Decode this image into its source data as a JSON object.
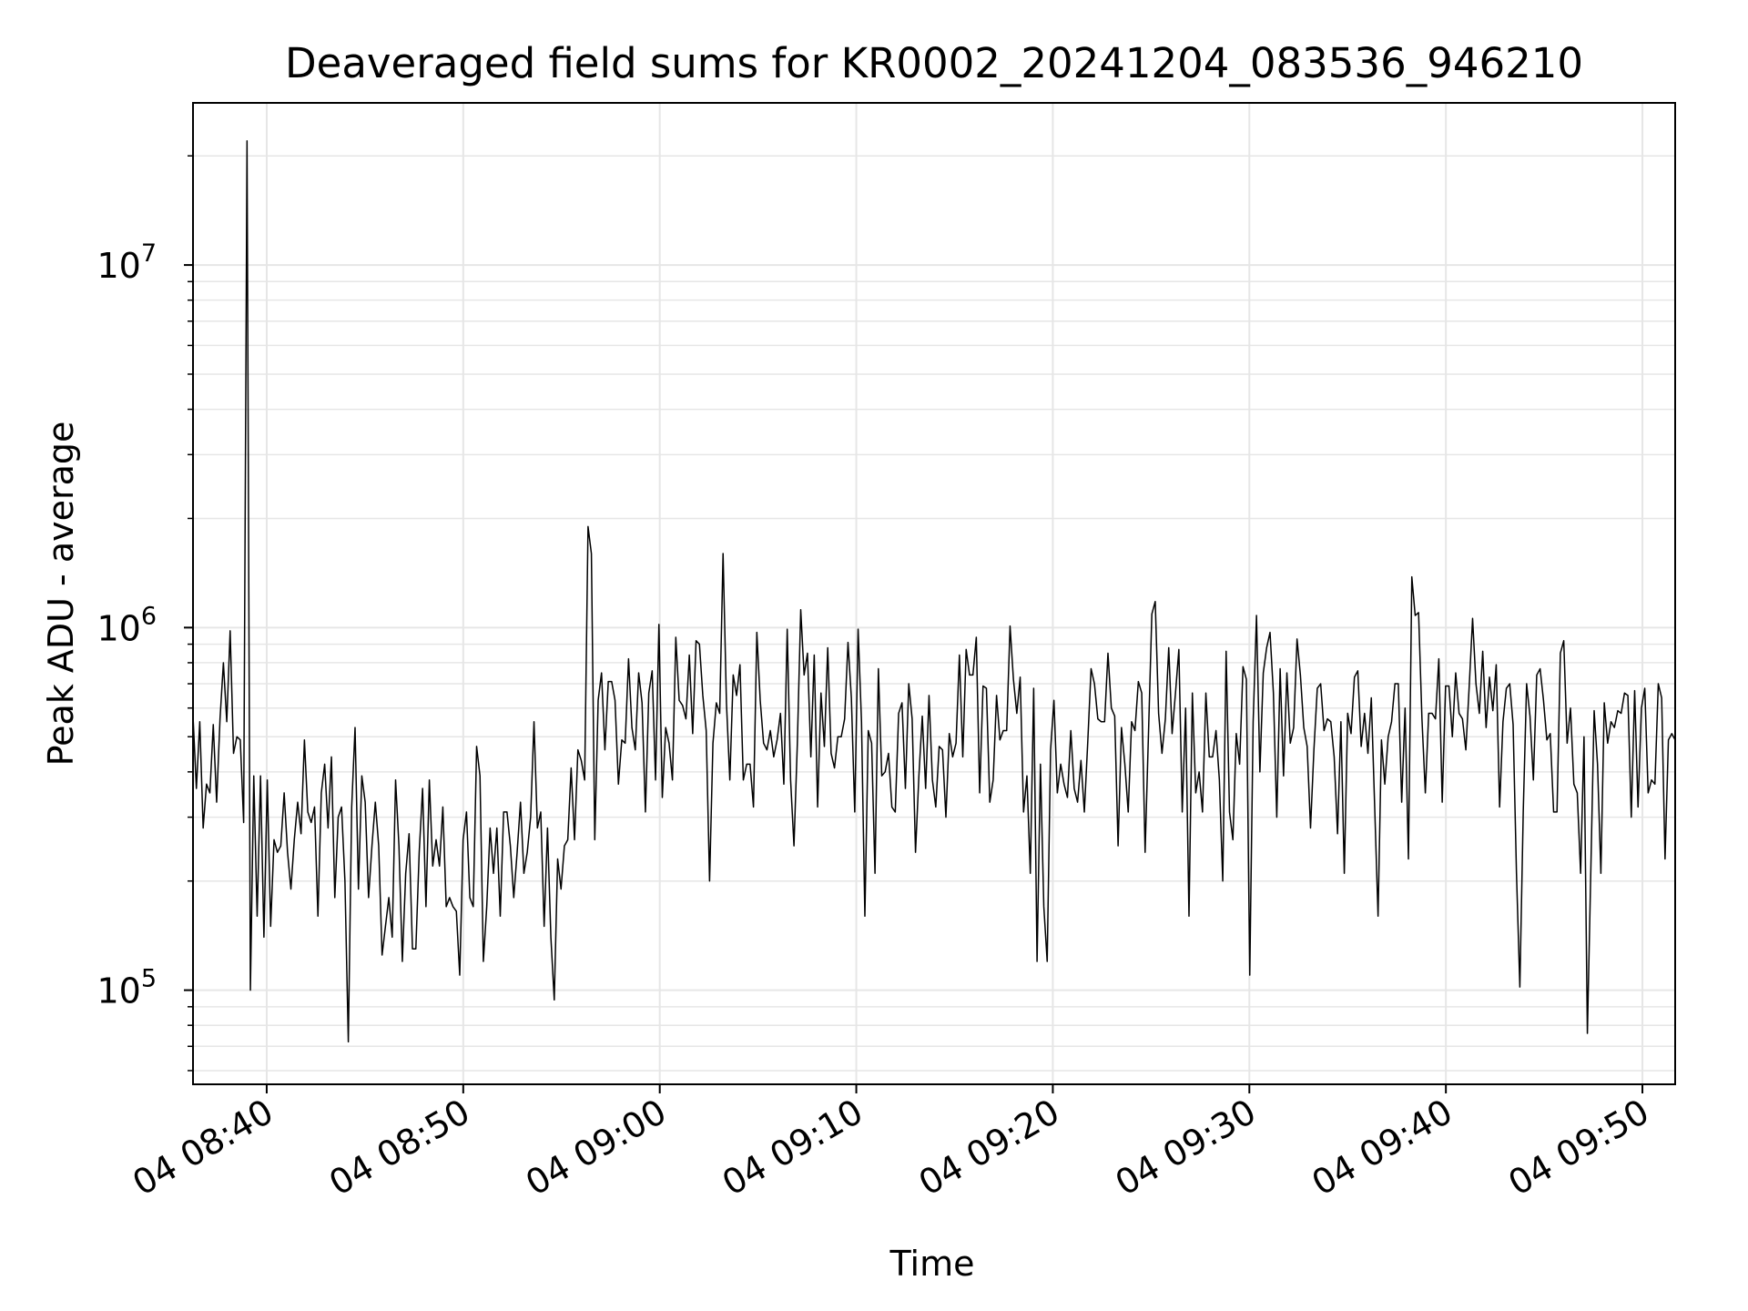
{
  "chart_data": {
    "type": "line",
    "title": "Deaveraged field sums for KR0002_20241204_083536_946210",
    "xlabel": "Time",
    "ylabel": "Peak ADU - average",
    "yscale": "log",
    "ylim": [
      55000,
      28000000
    ],
    "xlim": [
      "2024-12-04 08:36:15",
      "2024-12-04 09:51:40"
    ],
    "grid": true,
    "line_color": "#000000",
    "grid_color": "#e6e6e6",
    "x_ticks": [
      {
        "t": "2024-12-04 08:40",
        "label": "04 08:40"
      },
      {
        "t": "2024-12-04 08:50",
        "label": "04 08:50"
      },
      {
        "t": "2024-12-04 09:00",
        "label": "04 09:00"
      },
      {
        "t": "2024-12-04 09:10",
        "label": "04 09:10"
      },
      {
        "t": "2024-12-04 09:20",
        "label": "04 09:20"
      },
      {
        "t": "2024-12-04 09:30",
        "label": "04 09:30"
      },
      {
        "t": "2024-12-04 09:40",
        "label": "04 09:40"
      },
      {
        "t": "2024-12-04 09:50",
        "label": "04 09:50"
      }
    ],
    "y_ticks": [
      {
        "value": 100000,
        "base": "10",
        "exp": "5"
      },
      {
        "value": 1000000,
        "base": "10",
        "exp": "6"
      },
      {
        "value": 10000000,
        "base": "10",
        "exp": "7"
      }
    ],
    "series": [
      {
        "x_start": "2024-12-04 08:36:15",
        "x_end": "2024-12-04 09:51:40",
        "values": [
          570000,
          360000,
          550000,
          280000,
          370000,
          350000,
          540000,
          330000,
          560000,
          800000,
          550000,
          980000,
          450000,
          500000,
          490000,
          290000,
          22000000,
          100000,
          390000,
          160000,
          390000,
          140000,
          380000,
          150000,
          260000,
          240000,
          250000,
          350000,
          240000,
          190000,
          260000,
          330000,
          270000,
          490000,
          310000,
          290000,
          320000,
          160000,
          350000,
          420000,
          280000,
          440000,
          180000,
          300000,
          320000,
          200000,
          72000,
          320000,
          530000,
          190000,
          390000,
          330000,
          180000,
          250000,
          330000,
          250000,
          125000,
          150000,
          180000,
          140000,
          380000,
          250000,
          120000,
          210000,
          270000,
          130000,
          130000,
          240000,
          360000,
          170000,
          380000,
          220000,
          260000,
          220000,
          320000,
          170000,
          180000,
          170000,
          165000,
          110000,
          260000,
          310000,
          180000,
          170000,
          470000,
          390000,
          120000,
          170000,
          280000,
          210000,
          280000,
          160000,
          310000,
          310000,
          250000,
          180000,
          240000,
          330000,
          210000,
          240000,
          300000,
          550000,
          280000,
          310000,
          150000,
          280000,
          140000,
          94000,
          230000,
          190000,
          250000,
          260000,
          410000,
          260000,
          460000,
          430000,
          380000,
          1900000,
          1600000,
          260000,
          630000,
          750000,
          460000,
          710000,
          710000,
          630000,
          370000,
          490000,
          480000,
          820000,
          530000,
          460000,
          750000,
          620000,
          310000,
          660000,
          760000,
          380000,
          1020000,
          340000,
          530000,
          480000,
          380000,
          940000,
          630000,
          610000,
          560000,
          840000,
          510000,
          920000,
          900000,
          650000,
          520000,
          200000,
          480000,
          620000,
          580000,
          1600000,
          620000,
          380000,
          740000,
          650000,
          790000,
          380000,
          420000,
          420000,
          320000,
          970000,
          630000,
          480000,
          460000,
          520000,
          440000,
          490000,
          580000,
          370000,
          990000,
          380000,
          250000,
          480000,
          1120000,
          740000,
          850000,
          440000,
          840000,
          320000,
          660000,
          470000,
          880000,
          450000,
          410000,
          500000,
          500000,
          560000,
          910000,
          640000,
          310000,
          990000,
          550000,
          160000,
          520000,
          480000,
          210000,
          770000,
          390000,
          400000,
          450000,
          320000,
          310000,
          580000,
          620000,
          360000,
          700000,
          560000,
          240000,
          390000,
          570000,
          360000,
          650000,
          380000,
          320000,
          470000,
          460000,
          300000,
          510000,
          440000,
          480000,
          840000,
          440000,
          870000,
          740000,
          740000,
          940000,
          350000,
          690000,
          680000,
          330000,
          380000,
          650000,
          490000,
          520000,
          520000,
          1010000,
          720000,
          580000,
          730000,
          310000,
          390000,
          210000,
          680000,
          120000,
          420000,
          170000,
          120000,
          460000,
          630000,
          350000,
          420000,
          370000,
          340000,
          520000,
          360000,
          330000,
          430000,
          310000,
          480000,
          770000,
          700000,
          560000,
          550000,
          550000,
          850000,
          600000,
          570000,
          250000,
          530000,
          420000,
          310000,
          550000,
          520000,
          710000,
          660000,
          240000,
          510000,
          1090000,
          1180000,
          580000,
          450000,
          560000,
          880000,
          510000,
          660000,
          870000,
          310000,
          600000,
          160000,
          660000,
          350000,
          400000,
          310000,
          660000,
          440000,
          440000,
          520000,
          380000,
          200000,
          860000,
          310000,
          260000,
          510000,
          420000,
          780000,
          720000,
          110000,
          550000,
          1080000,
          400000,
          750000,
          880000,
          970000,
          660000,
          300000,
          770000,
          390000,
          750000,
          480000,
          530000,
          930000,
          740000,
          530000,
          470000,
          280000,
          460000,
          680000,
          700000,
          520000,
          560000,
          550000,
          440000,
          270000,
          550000,
          210000,
          580000,
          510000,
          730000,
          760000,
          470000,
          580000,
          450000,
          640000,
          320000,
          160000,
          490000,
          370000,
          500000,
          550000,
          700000,
          700000,
          330000,
          600000,
          230000,
          1380000,
          1080000,
          1100000,
          560000,
          350000,
          580000,
          580000,
          560000,
          820000,
          330000,
          690000,
          690000,
          500000,
          750000,
          580000,
          560000,
          460000,
          690000,
          1060000,
          700000,
          580000,
          860000,
          530000,
          730000,
          590000,
          790000,
          320000,
          550000,
          680000,
          700000,
          540000,
          210000,
          102000,
          310000,
          700000,
          570000,
          380000,
          740000,
          770000,
          630000,
          490000,
          510000,
          310000,
          310000,
          850000,
          920000,
          480000,
          600000,
          370000,
          350000,
          210000,
          500000,
          76000,
          210000,
          590000,
          420000,
          210000,
          620000,
          480000,
          550000,
          530000,
          590000,
          580000,
          660000,
          650000,
          300000,
          670000,
          320000,
          600000,
          680000,
          350000,
          380000,
          370000,
          700000,
          640000,
          230000,
          490000,
          510000,
          490000
        ]
      }
    ]
  }
}
